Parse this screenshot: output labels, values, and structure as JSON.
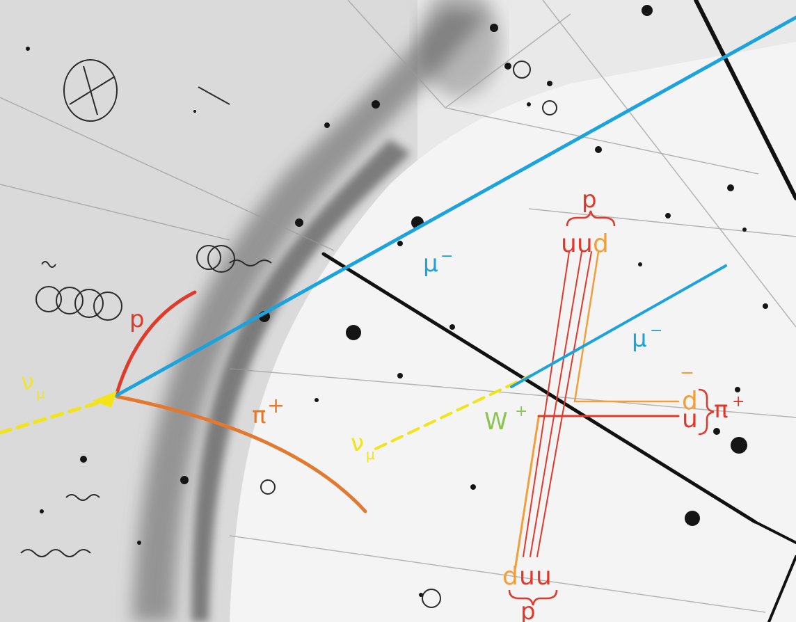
{
  "colors": {
    "proton": "#e03a2a",
    "pion": "#e2792f",
    "muon": "#1aa3dc",
    "neutrino": "#f3e417",
    "w_boson": "#8cc451",
    "quark_orange": "#f29f3a",
    "quark_red": "#e0382a",
    "background": "#f2f2f2"
  },
  "tracks": {
    "proton_label": "p",
    "pion_label": "π",
    "pion_charge": "+",
    "muon_label": "μ",
    "muon_charge": "−",
    "neutrino_label": "ν",
    "neutrino_subscript": "μ"
  },
  "feynman": {
    "top_baryon": "p",
    "top_quark_1": "u",
    "top_quark_2": "u",
    "top_quark_3": "d",
    "muon_label": "μ",
    "muon_charge": "−",
    "neutrino_label": "ν",
    "neutrino_subscript": "μ",
    "w_label": "W",
    "w_charge": "+",
    "pion_quark_1": "d",
    "pion_quark_1_bar": "‾",
    "pion_quark_2": "u",
    "pion_label": "π",
    "pion_charge": "+",
    "bottom_quark_1": "d",
    "bottom_quark_2": "u",
    "bottom_quark_3": "u",
    "bottom_baryon": "p"
  }
}
